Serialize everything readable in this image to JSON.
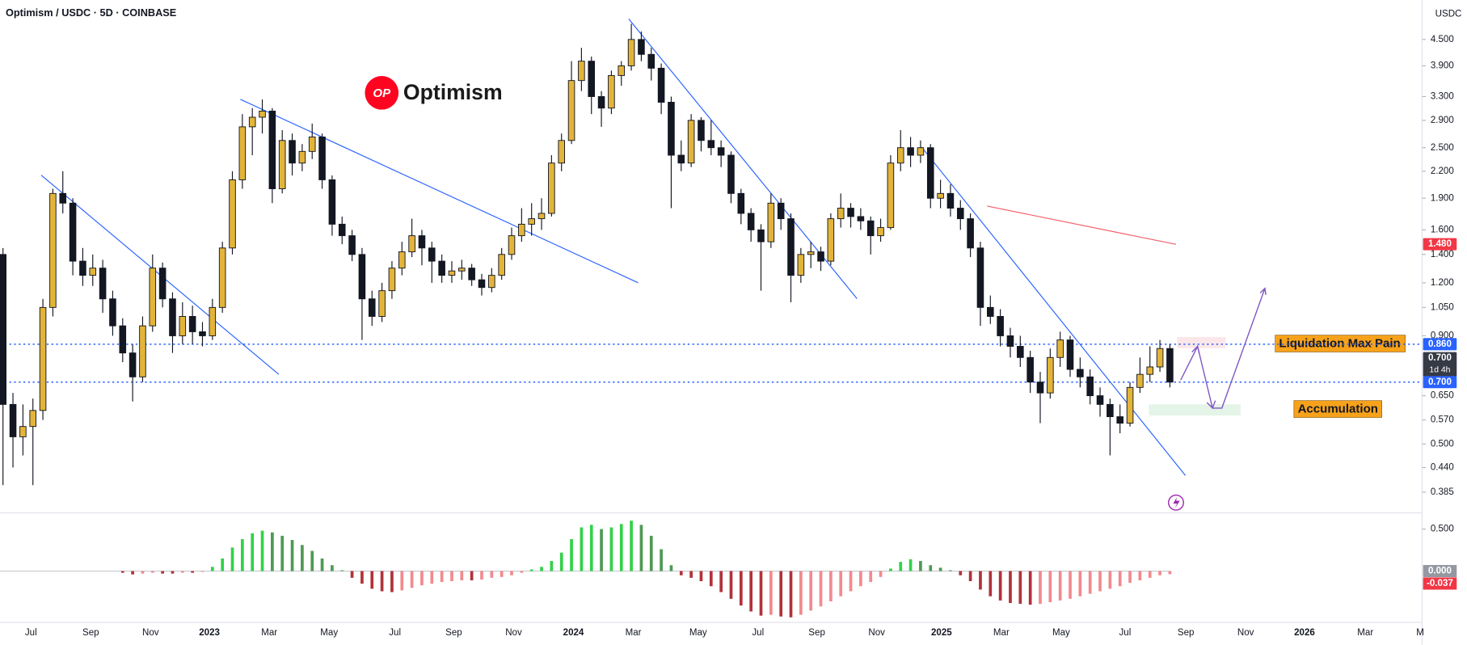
{
  "chart_data": [
    {
      "type": "candlestick",
      "title": "Optimism / USDC · 5D · COINBASE",
      "currency": "USDC",
      "logo_badge": "OP",
      "logo_text": "Optimism",
      "annotations": [
        "Liquidation Max Pain",
        "Accumulation"
      ],
      "up_color": "#e3b43a",
      "down_color": "#131722",
      "log_scale": true,
      "grid": false,
      "xlim": [
        -0.3,
        142.1
      ],
      "xticks": [
        {
          "value": 2.8,
          "label": "Jul"
        },
        {
          "value": 8.8,
          "label": "Sep"
        },
        {
          "value": 14.8,
          "label": "Nov"
        },
        {
          "value": 20.7,
          "label": "2023"
        },
        {
          "value": 26.7,
          "label": "Mar"
        },
        {
          "value": 32.7,
          "label": "May"
        },
        {
          "value": 39.3,
          "label": "Jul"
        },
        {
          "value": 45.2,
          "label": "Sep"
        },
        {
          "value": 51.2,
          "label": "Nov"
        },
        {
          "value": 57.2,
          "label": "2024"
        },
        {
          "value": 63.2,
          "label": "Mar"
        },
        {
          "value": 69.7,
          "label": "May"
        },
        {
          "value": 75.7,
          "label": "Jul"
        },
        {
          "value": 81.6,
          "label": "Sep"
        },
        {
          "value": 87.6,
          "label": "Nov"
        },
        {
          "value": 94.1,
          "label": "2025"
        },
        {
          "value": 100.1,
          "label": "Mar"
        },
        {
          "value": 106.1,
          "label": "May"
        },
        {
          "value": 112.5,
          "label": "Jul"
        },
        {
          "value": 118.6,
          "label": "Sep"
        },
        {
          "value": 124.6,
          "label": "Nov"
        },
        {
          "value": 130.5,
          "label": "2026"
        },
        {
          "value": 136.6,
          "label": "Mar"
        },
        {
          "value": 142.1,
          "label": "M"
        }
      ],
      "ylim": [
        0.344,
        5.57
      ],
      "yticks": [
        {
          "value": 4.5,
          "label": "4.500"
        },
        {
          "value": 3.9,
          "label": "3.900"
        },
        {
          "value": 3.3,
          "label": "3.300"
        },
        {
          "value": 2.9,
          "label": "2.900"
        },
        {
          "value": 2.5,
          "label": "2.500"
        },
        {
          "value": 2.2,
          "label": "2.200"
        },
        {
          "value": 1.9,
          "label": "1.900"
        },
        {
          "value": 1.6,
          "label": "1.600"
        },
        {
          "value": 1.4,
          "label": "1.400"
        },
        {
          "value": 1.2,
          "label": "1.200"
        },
        {
          "value": 1.05,
          "label": "1.050"
        },
        {
          "value": 0.9,
          "label": "0.900"
        },
        {
          "value": 0.65,
          "label": "0.650"
        },
        {
          "value": 0.57,
          "label": "0.570"
        },
        {
          "value": 0.5,
          "label": "0.500"
        },
        {
          "value": 0.44,
          "label": "0.440"
        },
        {
          "value": 0.385,
          "label": "0.385"
        }
      ],
      "price_labels": [
        {
          "value": 1.48,
          "label": "1.480",
          "color": "#f23645"
        },
        {
          "value": 0.86,
          "label": "0.860",
          "color": "#2962ff",
          "line": true
        },
        {
          "value": 0.7,
          "label": "0.700",
          "sub": "1d 4h",
          "color": "#363a45"
        },
        {
          "value": 0.7,
          "label": "0.700",
          "color": "#2962ff",
          "line": true
        }
      ],
      "candles": [
        [
          1.4,
          1.45,
          0.4,
          0.62
        ],
        [
          0.62,
          0.66,
          0.44,
          0.52
        ],
        [
          0.52,
          0.62,
          0.47,
          0.55
        ],
        [
          0.55,
          0.64,
          0.4,
          0.6
        ],
        [
          0.6,
          1.1,
          0.57,
          1.05
        ],
        [
          1.05,
          2.0,
          1.0,
          1.95
        ],
        [
          1.95,
          2.2,
          1.75,
          1.85
        ],
        [
          1.85,
          1.9,
          1.25,
          1.35
        ],
        [
          1.35,
          1.45,
          1.18,
          1.25
        ],
        [
          1.25,
          1.4,
          1.18,
          1.3
        ],
        [
          1.3,
          1.36,
          1.02,
          1.1
        ],
        [
          1.1,
          1.15,
          0.9,
          0.95
        ],
        [
          0.95,
          0.99,
          0.78,
          0.82
        ],
        [
          0.82,
          0.86,
          0.63,
          0.72
        ],
        [
          0.72,
          1.0,
          0.7,
          0.95
        ],
        [
          0.95,
          1.4,
          0.92,
          1.3
        ],
        [
          1.3,
          1.34,
          1.05,
          1.1
        ],
        [
          1.1,
          1.14,
          0.82,
          0.9
        ],
        [
          0.9,
          1.08,
          0.86,
          1.0
        ],
        [
          1.0,
          1.06,
          0.86,
          0.92
        ],
        [
          0.92,
          0.97,
          0.85,
          0.9
        ],
        [
          0.9,
          1.1,
          0.88,
          1.05
        ],
        [
          1.05,
          1.5,
          1.02,
          1.45
        ],
        [
          1.45,
          2.2,
          1.4,
          2.1
        ],
        [
          2.1,
          3.0,
          2.0,
          2.8
        ],
        [
          2.8,
          3.1,
          2.4,
          2.95
        ],
        [
          2.95,
          3.25,
          2.7,
          3.05
        ],
        [
          3.05,
          3.1,
          1.85,
          2.0
        ],
        [
          2.0,
          2.75,
          1.95,
          2.6
        ],
        [
          2.6,
          2.7,
          2.15,
          2.3
        ],
        [
          2.3,
          2.55,
          2.2,
          2.45
        ],
        [
          2.45,
          2.85,
          2.35,
          2.65
        ],
        [
          2.65,
          2.7,
          2.0,
          2.1
        ],
        [
          2.1,
          2.15,
          1.55,
          1.65
        ],
        [
          1.65,
          1.72,
          1.48,
          1.55
        ],
        [
          1.55,
          1.6,
          1.35,
          1.4
        ],
        [
          1.4,
          1.45,
          0.88,
          1.1
        ],
        [
          1.1,
          1.15,
          0.95,
          1.0
        ],
        [
          1.0,
          1.2,
          0.97,
          1.15
        ],
        [
          1.15,
          1.35,
          1.1,
          1.3
        ],
        [
          1.3,
          1.5,
          1.25,
          1.42
        ],
        [
          1.42,
          1.7,
          1.38,
          1.55
        ],
        [
          1.55,
          1.6,
          1.32,
          1.45
        ],
        [
          1.45,
          1.5,
          1.2,
          1.35
        ],
        [
          1.35,
          1.4,
          1.2,
          1.25
        ],
        [
          1.25,
          1.35,
          1.2,
          1.28
        ],
        [
          1.28,
          1.36,
          1.22,
          1.3
        ],
        [
          1.3,
          1.33,
          1.18,
          1.22
        ],
        [
          1.22,
          1.26,
          1.12,
          1.17
        ],
        [
          1.17,
          1.3,
          1.14,
          1.25
        ],
        [
          1.25,
          1.45,
          1.22,
          1.4
        ],
        [
          1.4,
          1.62,
          1.36,
          1.55
        ],
        [
          1.55,
          1.8,
          1.5,
          1.65
        ],
        [
          1.65,
          1.85,
          1.55,
          1.7
        ],
        [
          1.7,
          1.9,
          1.6,
          1.75
        ],
        [
          1.75,
          2.4,
          1.72,
          2.3
        ],
        [
          2.3,
          2.7,
          2.2,
          2.6
        ],
        [
          2.6,
          4.0,
          2.55,
          3.6
        ],
        [
          3.6,
          4.3,
          3.4,
          4.0
        ],
        [
          4.0,
          4.1,
          3.0,
          3.3
        ],
        [
          3.3,
          3.4,
          2.8,
          3.1
        ],
        [
          3.1,
          3.8,
          3.0,
          3.7
        ],
        [
          3.7,
          4.0,
          3.5,
          3.9
        ],
        [
          3.9,
          4.9,
          3.8,
          4.5
        ],
        [
          4.5,
          4.7,
          4.0,
          4.15
        ],
        [
          4.15,
          4.3,
          3.6,
          3.85
        ],
        [
          3.85,
          3.95,
          3.0,
          3.2
        ],
        [
          3.2,
          3.3,
          1.8,
          2.4
        ],
        [
          2.4,
          2.6,
          2.2,
          2.3
        ],
        [
          2.3,
          3.0,
          2.25,
          2.9
        ],
        [
          2.9,
          2.95,
          2.45,
          2.6
        ],
        [
          2.6,
          2.9,
          2.4,
          2.5
        ],
        [
          2.5,
          2.6,
          2.25,
          2.4
        ],
        [
          2.4,
          2.45,
          1.85,
          1.95
        ],
        [
          1.95,
          2.0,
          1.65,
          1.75
        ],
        [
          1.75,
          1.8,
          1.5,
          1.6
        ],
        [
          1.6,
          1.65,
          1.15,
          1.5
        ],
        [
          1.5,
          1.95,
          1.45,
          1.85
        ],
        [
          1.85,
          1.9,
          1.6,
          1.7
        ],
        [
          1.7,
          1.75,
          1.08,
          1.25
        ],
        [
          1.25,
          1.45,
          1.2,
          1.4
        ],
        [
          1.4,
          1.5,
          1.3,
          1.42
        ],
        [
          1.42,
          1.46,
          1.28,
          1.35
        ],
        [
          1.35,
          1.75,
          1.32,
          1.7
        ],
        [
          1.7,
          1.95,
          1.62,
          1.8
        ],
        [
          1.8,
          1.85,
          1.62,
          1.72
        ],
        [
          1.72,
          1.8,
          1.6,
          1.68
        ],
        [
          1.68,
          1.72,
          1.4,
          1.55
        ],
        [
          1.55,
          1.7,
          1.5,
          1.62
        ],
        [
          1.62,
          2.4,
          1.6,
          2.3
        ],
        [
          2.3,
          2.75,
          2.2,
          2.5
        ],
        [
          2.5,
          2.65,
          2.25,
          2.4
        ],
        [
          2.4,
          2.6,
          2.3,
          2.5
        ],
        [
          2.5,
          2.55,
          1.8,
          1.9
        ],
        [
          1.9,
          2.1,
          1.8,
          1.95
        ],
        [
          1.95,
          2.05,
          1.72,
          1.8
        ],
        [
          1.8,
          1.88,
          1.6,
          1.7
        ],
        [
          1.7,
          1.75,
          1.38,
          1.45
        ],
        [
          1.45,
          1.5,
          0.95,
          1.05
        ],
        [
          1.05,
          1.12,
          0.96,
          1.0
        ],
        [
          1.0,
          1.04,
          0.85,
          0.9
        ],
        [
          0.9,
          0.94,
          0.8,
          0.85
        ],
        [
          0.85,
          0.9,
          0.76,
          0.8
        ],
        [
          0.8,
          0.83,
          0.66,
          0.7
        ],
        [
          0.7,
          0.74,
          0.56,
          0.66
        ],
        [
          0.66,
          0.84,
          0.64,
          0.8
        ],
        [
          0.8,
          0.92,
          0.76,
          0.88
        ],
        [
          0.88,
          0.9,
          0.72,
          0.75
        ],
        [
          0.75,
          0.8,
          0.68,
          0.72
        ],
        [
          0.72,
          0.75,
          0.62,
          0.65
        ],
        [
          0.65,
          0.68,
          0.58,
          0.62
        ],
        [
          0.62,
          0.64,
          0.47,
          0.58
        ],
        [
          0.58,
          0.62,
          0.53,
          0.56
        ],
        [
          0.56,
          0.7,
          0.55,
          0.68
        ],
        [
          0.68,
          0.8,
          0.66,
          0.73
        ],
        [
          0.73,
          0.85,
          0.7,
          0.76
        ],
        [
          0.76,
          0.88,
          0.74,
          0.84
        ],
        [
          0.84,
          0.86,
          0.68,
          0.7
        ]
      ]
    },
    {
      "type": "bar",
      "ylim": [
        -0.61,
        0.67
      ],
      "yticks": [
        {
          "value": 0.5,
          "label": "0.500"
        },
        {
          "value": 0,
          "label": "0.000"
        }
      ],
      "last_label": {
        "value": -0.037,
        "label": "-0.037"
      },
      "colors": {
        "green_rising": "#33d14a",
        "green_falling": "#4f9a55",
        "red_falling": "#b2323a",
        "red_rising": "#f28a8e",
        "zero": "#9598a1"
      },
      "values": [
        0,
        0,
        0,
        0,
        0,
        0,
        0,
        0,
        0,
        0,
        0,
        0,
        -0.02,
        -0.04,
        -0.03,
        -0.02,
        -0.03,
        -0.03,
        -0.02,
        -0.02,
        -0.01,
        0.05,
        0.15,
        0.28,
        0.38,
        0.45,
        0.48,
        0.46,
        0.42,
        0.37,
        0.31,
        0.24,
        0.15,
        0.07,
        0.01,
        -0.08,
        -0.15,
        -0.21,
        -0.24,
        -0.25,
        -0.23,
        -0.2,
        -0.17,
        -0.15,
        -0.13,
        -0.12,
        -0.11,
        -0.11,
        -0.1,
        -0.08,
        -0.07,
        -0.05,
        -0.02,
        0.02,
        0.05,
        0.12,
        0.22,
        0.38,
        0.52,
        0.55,
        0.5,
        0.52,
        0.56,
        0.6,
        0.55,
        0.42,
        0.26,
        0.07,
        -0.05,
        -0.08,
        -0.12,
        -0.18,
        -0.25,
        -0.33,
        -0.41,
        -0.48,
        -0.53,
        -0.52,
        -0.54,
        -0.55,
        -0.52,
        -0.47,
        -0.42,
        -0.36,
        -0.3,
        -0.24,
        -0.18,
        -0.13,
        -0.07,
        0.03,
        0.11,
        0.14,
        0.12,
        0.07,
        0.04,
        0.01,
        -0.05,
        -0.12,
        -0.22,
        -0.3,
        -0.35,
        -0.38,
        -0.39,
        -0.4,
        -0.39,
        -0.37,
        -0.35,
        -0.33,
        -0.3,
        -0.27,
        -0.24,
        -0.21,
        -0.18,
        -0.14,
        -0.11,
        -0.08,
        -0.05,
        -0.037
      ]
    }
  ]
}
